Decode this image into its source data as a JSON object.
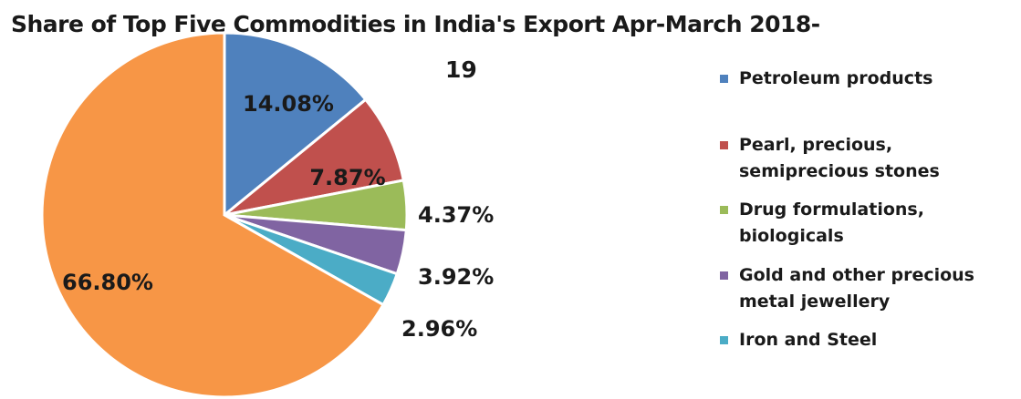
{
  "chart_data": {
    "type": "pie",
    "title": "Share of Top Five Commodities in India's Export Apr-March 2018-19",
    "title_lines": [
      "Share of Top Five Commodities in India's Export Apr-March 2018-",
      "19"
    ],
    "slices": [
      {
        "name": "Petroleum products",
        "value": 14.08,
        "label": "14.08%",
        "color": "#4f81bd"
      },
      {
        "name": "Pearl, precious, semiprecious stones",
        "value": 7.87,
        "label": "7.87%",
        "color": "#c0504d"
      },
      {
        "name": "Drug formulations, biologicals",
        "value": 4.37,
        "label": "4.37%",
        "color": "#9bbb59"
      },
      {
        "name": "Gold and other precious metal jewellery",
        "value": 3.92,
        "label": "3.92%",
        "color": "#8064a2"
      },
      {
        "name": "Iron and Steel",
        "value": 2.96,
        "label": "2.96%",
        "color": "#4bacc6"
      },
      {
        "name": "",
        "value": 66.8,
        "label": "66.80%",
        "color": "#f79646"
      }
    ],
    "legend": [
      {
        "lines": [
          "Petroleum products"
        ],
        "color": "#4f81bd"
      },
      {
        "lines": [
          "Pearl, precious,",
          "semiprecious stones"
        ],
        "color": "#c0504d"
      },
      {
        "lines": [
          "Drug formulations,",
          "biologicals"
        ],
        "color": "#9bbb59"
      },
      {
        "lines": [
          "Gold and other precious",
          "metal jewellery"
        ],
        "color": "#8064a2"
      },
      {
        "lines": [
          "Iron and Steel"
        ],
        "color": "#4bacc6"
      }
    ],
    "legend_position": "right"
  }
}
